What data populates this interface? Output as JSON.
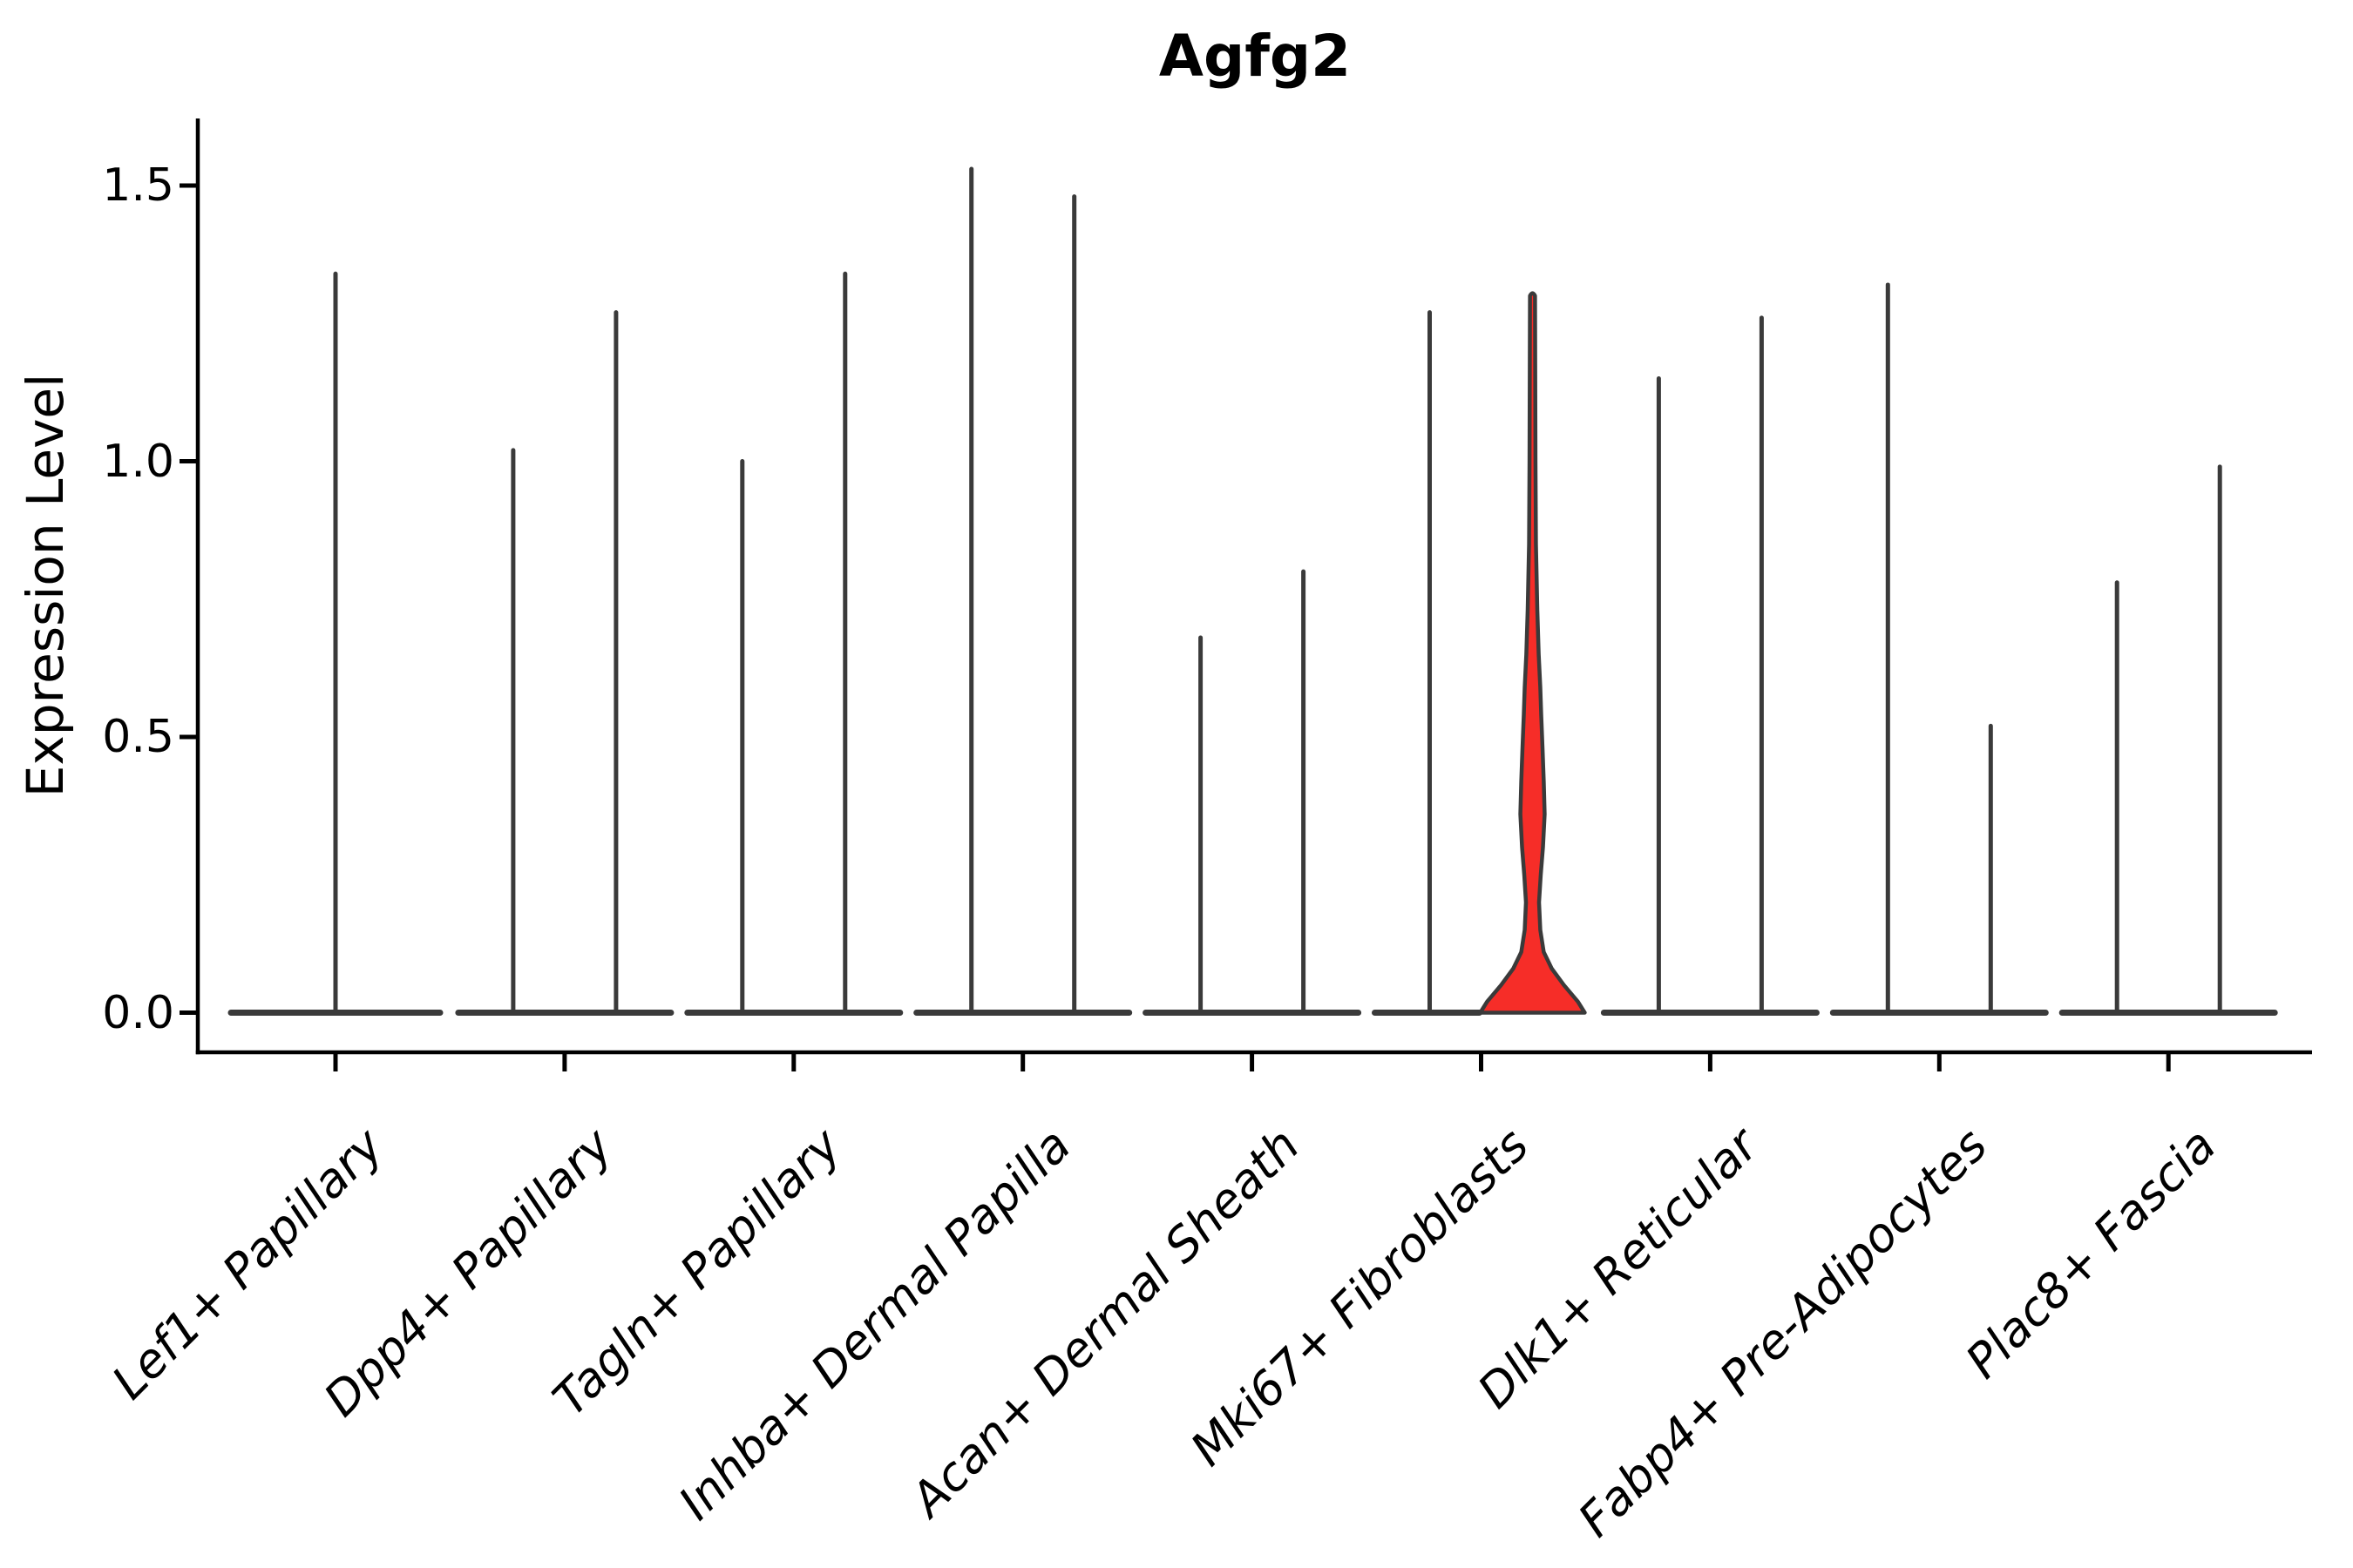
{
  "title": "Agfg2",
  "colors": {
    "background": "#ffffff",
    "violin_outline": "#3a3a3a",
    "axis": "#000000",
    "highlight_fill": "#f62d28",
    "text": "#000000"
  },
  "chart_data": {
    "type": "violin",
    "title": "Agfg2",
    "xlabel": "",
    "ylabel": "Expression Level",
    "ylim": [
      -0.07,
      1.62
    ],
    "yticks": [
      0.0,
      0.5,
      1.0,
      1.5
    ],
    "yticklabels": [
      "0.0",
      "0.5",
      "1.0",
      "1.5"
    ],
    "grid": false,
    "legend_position": "none",
    "categories": [
      "Lef1+ Papillary",
      "Dpp4+ Papillary",
      "Tagln+ Papillary",
      "Inhba+ Dermal Papilla",
      "Acan+ Dermal Sheath",
      "Mki67+ Fibroblasts",
      "Dlk1+ Reticular",
      "Fabp4+ Pre-Adipocytes",
      "Plac8+ Fascia"
    ],
    "description": "Violin plot of Agfg2 expression per fibroblast cluster; most violins collapse to a hairline spike over a flat base at 0; only the highlighted Mki67+ Fibroblasts violin has visible width and is filled red.",
    "violins": [
      {
        "category": "Lef1+ Papillary",
        "group": "single",
        "max": 1.34,
        "filled": false
      },
      {
        "category": "Dpp4+ Papillary",
        "group": "left",
        "max": 1.02,
        "filled": false
      },
      {
        "category": "Dpp4+ Papillary",
        "group": "right",
        "max": 1.27,
        "filled": false
      },
      {
        "category": "Tagln+ Papillary",
        "group": "left",
        "max": 1.0,
        "filled": false
      },
      {
        "category": "Tagln+ Papillary",
        "group": "right",
        "max": 1.34,
        "filled": false
      },
      {
        "category": "Inhba+ Dermal Papilla",
        "group": "left",
        "max": 1.53,
        "filled": false
      },
      {
        "category": "Inhba+ Dermal Papilla",
        "group": "right",
        "max": 1.48,
        "filled": false
      },
      {
        "category": "Acan+ Dermal Sheath",
        "group": "left",
        "max": 0.68,
        "filled": false
      },
      {
        "category": "Acan+ Dermal Sheath",
        "group": "right",
        "max": 0.8,
        "filled": false
      },
      {
        "category": "Mki67+ Fibroblasts",
        "group": "left",
        "max": 1.27,
        "filled": false
      },
      {
        "category": "Mki67+ Fibroblasts",
        "group": "right",
        "max": 1.3,
        "filled": true,
        "fill_color": "#f62d28",
        "profile": [
          [
            0.0,
            0.228
          ],
          [
            0.02,
            0.198
          ],
          [
            0.05,
            0.137
          ],
          [
            0.08,
            0.084
          ],
          [
            0.11,
            0.049
          ],
          [
            0.15,
            0.034
          ],
          [
            0.2,
            0.0285
          ],
          [
            0.25,
            0.036
          ],
          [
            0.3,
            0.0456
          ],
          [
            0.36,
            0.053
          ],
          [
            0.42,
            0.049
          ],
          [
            0.48,
            0.0437
          ],
          [
            0.54,
            0.038
          ],
          [
            0.59,
            0.034
          ],
          [
            0.65,
            0.027
          ],
          [
            0.73,
            0.021
          ],
          [
            0.85,
            0.015
          ],
          [
            1.0,
            0.013
          ],
          [
            1.3,
            0.011
          ]
        ]
      },
      {
        "category": "Dlk1+ Reticular",
        "group": "left",
        "max": 1.15,
        "filled": false
      },
      {
        "category": "Dlk1+ Reticular",
        "group": "right",
        "max": 1.26,
        "filled": false
      },
      {
        "category": "Fabp4+ Pre-Adipocytes",
        "group": "left",
        "max": 1.32,
        "filled": false
      },
      {
        "category": "Fabp4+ Pre-Adipocytes",
        "group": "right",
        "max": 0.52,
        "filled": false
      },
      {
        "category": "Plac8+ Fascia",
        "group": "left",
        "max": 0.78,
        "filled": false
      },
      {
        "category": "Plac8+ Fascia",
        "group": "right",
        "max": 0.99,
        "filled": false
      }
    ]
  }
}
